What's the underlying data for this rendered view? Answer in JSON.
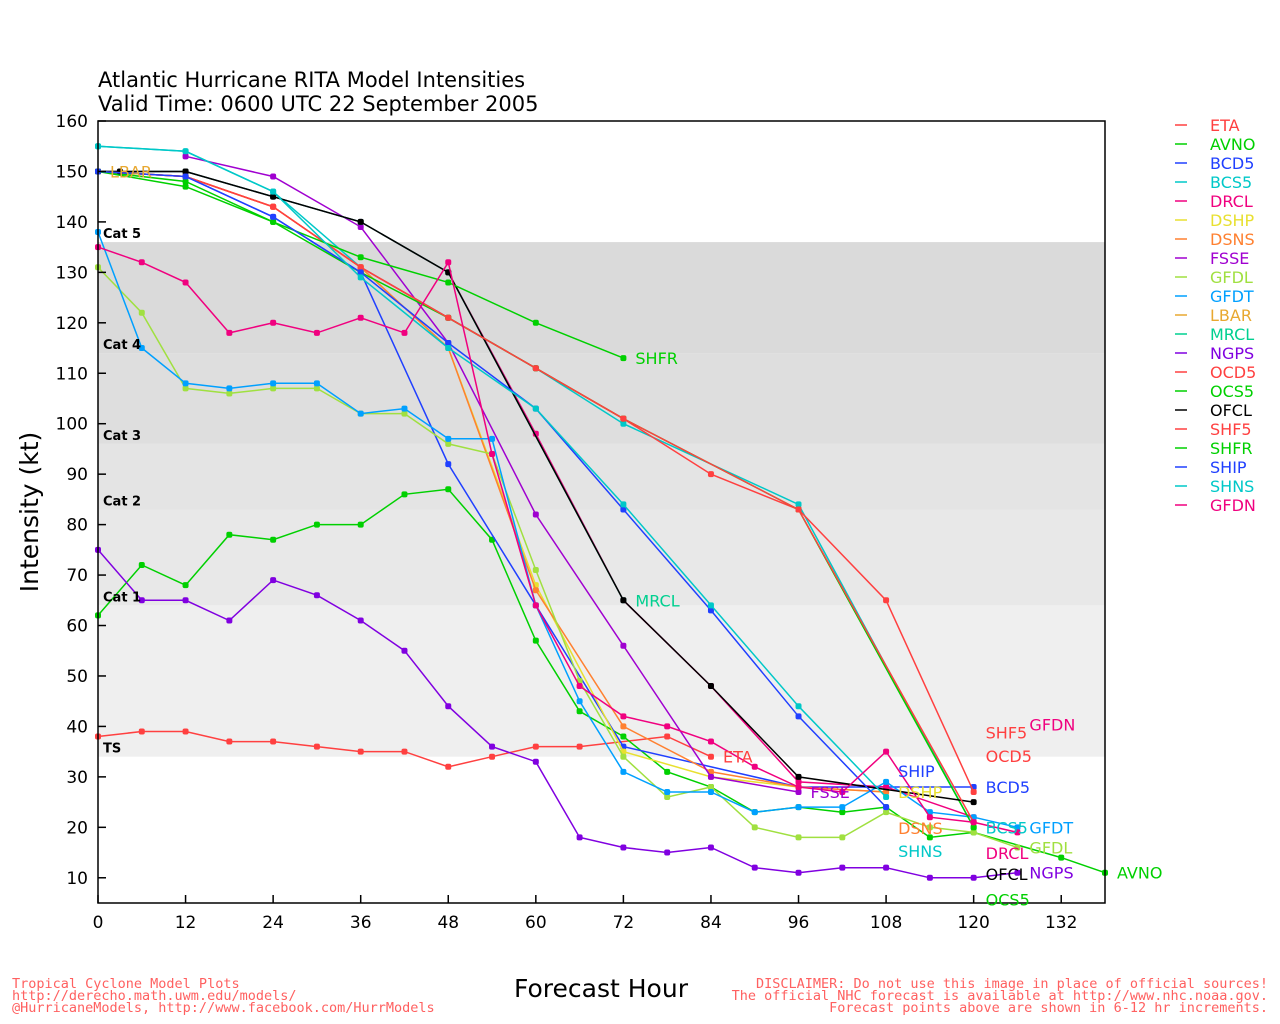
{
  "chart_data": {
    "type": "line",
    "title": "Atlantic Hurricane RITA Model Intensities",
    "subtitle": "Valid Time: 0600 UTC 22 September 2005",
    "xlabel": "Forecast Hour",
    "ylabel": "Intensity (kt)",
    "xlim": [
      0,
      138
    ],
    "ylim": [
      5,
      160
    ],
    "xticks": [
      0,
      12,
      24,
      36,
      48,
      60,
      72,
      84,
      96,
      108,
      120,
      132
    ],
    "yticks": [
      10,
      20,
      30,
      40,
      50,
      60,
      70,
      80,
      90,
      100,
      110,
      120,
      130,
      140,
      150,
      160
    ],
    "legend_position": "right-outside",
    "categories": [
      {
        "label": "TS",
        "min": 34,
        "max": 64,
        "color": "#efefef"
      },
      {
        "label": "Cat 1",
        "min": 64,
        "max": 83,
        "color": "#e8e8e8"
      },
      {
        "label": "Cat 2",
        "min": 83,
        "max": 96,
        "color": "#e4e4e4"
      },
      {
        "label": "Cat 3",
        "min": 96,
        "max": 114,
        "color": "#dedede"
      },
      {
        "label": "Cat 4",
        "min": 114,
        "max": 136,
        "color": "#dadada"
      },
      {
        "label": "Cat 5",
        "min": 136,
        "max": 136,
        "color": "#dadada"
      }
    ],
    "series": [
      {
        "name": "ETA",
        "color": "#ff4040",
        "x": [
          0,
          6,
          12,
          18,
          24,
          30,
          36,
          42,
          48,
          54,
          60,
          66,
          78,
          84
        ],
        "y": [
          38,
          39,
          39,
          37,
          37,
          36,
          35,
          35,
          32,
          34,
          36,
          36,
          38,
          34
        ]
      },
      {
        "name": "AVNO",
        "color": "#00d000",
        "x": [
          0,
          6,
          12,
          18,
          24,
          30,
          36,
          42,
          48,
          54,
          60,
          66,
          72,
          78,
          84,
          90,
          96,
          102,
          108,
          114,
          120,
          132,
          138
        ],
        "y": [
          62,
          72,
          68,
          78,
          77,
          80,
          80,
          86,
          87,
          77,
          57,
          43,
          38,
          31,
          28,
          23,
          24,
          23,
          24,
          18,
          19,
          14,
          11
        ]
      },
      {
        "name": "BCD5",
        "color": "#2040ff",
        "x": [
          0,
          12,
          24,
          36,
          48,
          60,
          72,
          96,
          120
        ],
        "y": [
          150,
          149,
          141,
          130,
          92,
          64,
          36,
          28,
          28
        ]
      },
      {
        "name": "BCS5",
        "color": "#00c8c8",
        "x": [
          0,
          12,
          24,
          36,
          48,
          60,
          72,
          96,
          120
        ],
        "y": [
          155,
          154,
          146,
          131,
          121,
          111,
          100,
          84,
          20
        ]
      },
      {
        "name": "DRCL",
        "color": "#f0007f",
        "x": [
          0,
          12,
          24,
          36,
          48,
          60,
          72,
          84,
          96,
          108,
          120
        ],
        "y": [
          150,
          150,
          145,
          140,
          130,
          98,
          65,
          48,
          29,
          28,
          22
        ]
      },
      {
        "name": "DSHP",
        "color": "#e8e030",
        "x": [
          0,
          12,
          24,
          36,
          48,
          60,
          72,
          84,
          96,
          108
        ],
        "y": [
          150,
          149,
          143,
          131,
          115,
          68,
          35,
          30,
          28,
          27
        ]
      },
      {
        "name": "DSNS",
        "color": "#ff8030",
        "x": [
          0,
          12,
          24,
          36,
          48,
          60,
          72,
          84,
          96,
          108
        ],
        "y": [
          150,
          149,
          143,
          131,
          115,
          67,
          40,
          31,
          28,
          27
        ]
      },
      {
        "name": "FSSE",
        "color": "#a000d0",
        "x": [
          12,
          24,
          36,
          48,
          60,
          72,
          84,
          96
        ],
        "y": [
          153,
          149,
          139,
          116,
          82,
          56,
          30,
          27
        ]
      },
      {
        "name": "GFDL",
        "color": "#a0e040",
        "x": [
          0,
          6,
          12,
          18,
          24,
          30,
          36,
          42,
          48,
          54,
          60,
          66,
          72,
          78,
          84,
          90,
          96,
          102,
          108,
          114,
          120,
          126
        ],
        "y": [
          131,
          122,
          107,
          106,
          107,
          107,
          102,
          102,
          96,
          94,
          71,
          49,
          34,
          26,
          28,
          20,
          18,
          18,
          23,
          20,
          19,
          16
        ]
      },
      {
        "name": "GFDT",
        "color": "#00a0ff",
        "x": [
          0,
          6,
          12,
          18,
          24,
          30,
          36,
          42,
          48,
          54,
          60,
          66,
          72,
          78,
          84,
          90,
          96,
          102,
          108,
          114,
          120,
          126
        ],
        "y": [
          138,
          115,
          108,
          107,
          108,
          108,
          102,
          103,
          97,
          97,
          64,
          45,
          31,
          27,
          27,
          23,
          24,
          24,
          29,
          23,
          22,
          20
        ]
      },
      {
        "name": "LBAR",
        "color": "#e8a830",
        "x": [
          0
        ],
        "y": [
          150
        ]
      },
      {
        "name": "MRCL",
        "color": "#00d090",
        "x": [
          0,
          12,
          24,
          36,
          48,
          72
        ],
        "y": [
          150,
          150,
          145,
          140,
          130,
          65
        ]
      },
      {
        "name": "NGPS",
        "color": "#8000e0",
        "x": [
          0,
          6,
          12,
          18,
          24,
          30,
          36,
          42,
          48,
          54,
          60,
          66,
          72,
          78,
          84,
          90,
          96,
          102,
          108,
          114,
          120,
          126
        ],
        "y": [
          75,
          65,
          65,
          61,
          69,
          66,
          61,
          55,
          44,
          36,
          33,
          18,
          16,
          15,
          16,
          12,
          11,
          12,
          12,
          10,
          10,
          11
        ]
      },
      {
        "name": "OCD5",
        "color": "#ff4040",
        "x": [
          0,
          12,
          24,
          36,
          48,
          60,
          72,
          84,
          96,
          108,
          120
        ],
        "y": [
          150,
          149,
          143,
          131,
          121,
          111,
          101,
          90,
          83,
          65,
          27
        ]
      },
      {
        "name": "OCS5",
        "color": "#00d000",
        "x": [
          0,
          12,
          24,
          36,
          48,
          60,
          72,
          96,
          120
        ],
        "y": [
          150,
          148,
          140,
          130,
          121,
          111,
          101,
          83,
          20
        ]
      },
      {
        "name": "OFCL",
        "color": "#000000",
        "x": [
          0,
          3,
          12,
          24,
          36,
          48,
          72,
          84,
          96,
          120
        ],
        "y": [
          150,
          150,
          150,
          145,
          140,
          130,
          65,
          48,
          30,
          25
        ]
      },
      {
        "name": "SHF5",
        "color": "#ff4040",
        "x": [
          0,
          12,
          24,
          36,
          48,
          60,
          72,
          96,
          120
        ],
        "y": [
          150,
          149,
          143,
          131,
          121,
          111,
          101,
          83,
          21
        ]
      },
      {
        "name": "SHFR",
        "color": "#00d000",
        "x": [
          0,
          12,
          24,
          36,
          48,
          60,
          72
        ],
        "y": [
          150,
          147,
          140,
          133,
          128,
          120,
          113
        ]
      },
      {
        "name": "SHIP",
        "color": "#2040ff",
        "x": [
          0,
          12,
          24,
          36,
          48,
          60,
          72,
          84,
          96,
          108
        ],
        "y": [
          150,
          149,
          141,
          130,
          116,
          103,
          83,
          63,
          42,
          24
        ]
      },
      {
        "name": "SHNS",
        "color": "#00c8c8",
        "x": [
          0,
          12,
          24,
          36,
          48,
          60,
          72,
          84,
          96,
          108
        ],
        "y": [
          155,
          154,
          146,
          129,
          115,
          103,
          84,
          64,
          44,
          26
        ]
      },
      {
        "name": "GFDN",
        "color": "#f0007f",
        "x": [
          0,
          6,
          12,
          18,
          24,
          30,
          36,
          42,
          48,
          54,
          60,
          66,
          72,
          78,
          84,
          90,
          96,
          102,
          108,
          114,
          120,
          126
        ],
        "y": [
          135,
          132,
          128,
          118,
          120,
          118,
          121,
          118,
          132,
          94,
          64,
          48,
          42,
          40,
          37,
          32,
          28,
          27,
          35,
          22,
          21,
          19
        ]
      }
    ]
  },
  "footer": {
    "left": [
      "Tropical Cyclone Model Plots",
      "http://derecho.math.uwm.edu/models/",
      "@HurricaneModels, http://www.facebook.com/HurrModels"
    ],
    "right": [
      "DISCLAIMER: Do not use this image in place of official sources!",
      "The official NHC forecast is available at http://www.nhc.noaa.gov.",
      "Forecast points above are shown in 6-12 hr increments."
    ]
  }
}
